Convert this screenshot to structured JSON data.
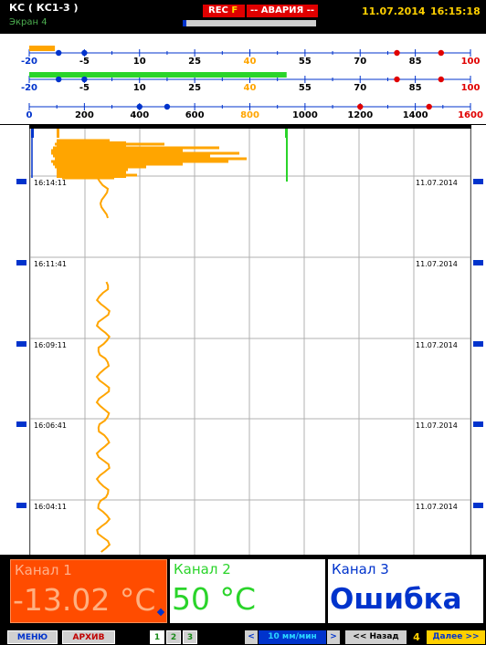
{
  "header": {
    "device_name": "КС ( КС1-3 )",
    "screen_label": "Экран 4",
    "rec_label": "REC",
    "rec_flag": "F",
    "alarm_label": "-- АВАРИЯ --",
    "record_progress": 0.03,
    "date": "11.07.2014",
    "time": "16:15:18"
  },
  "scales": [
    {
      "id": "ch1",
      "color": "#ffa500",
      "min": -20,
      "max": 100,
      "ticks": [
        -20,
        -5,
        10,
        25,
        40,
        55,
        70,
        85,
        100
      ],
      "tick_labels": [
        "-20",
        "-5",
        "10",
        "25",
        "40",
        "55",
        "70",
        "85",
        "100"
      ],
      "bar_value": -13.02,
      "markers_blue": [
        -12,
        -5
      ],
      "markers_red": [
        80,
        92
      ]
    },
    {
      "id": "ch2",
      "color": "#2ad42a",
      "min": -20,
      "max": 100,
      "ticks": [
        -20,
        -5,
        10,
        25,
        40,
        55,
        70,
        85,
        100
      ],
      "tick_labels": [
        "-20",
        "-5",
        "10",
        "25",
        "40",
        "55",
        "70",
        "85",
        "100"
      ],
      "bar_value": 50,
      "markers_blue": [
        -12,
        -5
      ],
      "markers_red": [
        80,
        92
      ]
    },
    {
      "id": "ch3",
      "color": "#0033cc",
      "min": 0,
      "max": 1600,
      "ticks": [
        0,
        200,
        400,
        600,
        800,
        1000,
        1200,
        1400,
        1600
      ],
      "tick_labels": [
        "0",
        "200",
        "400",
        "600",
        "800",
        "1000",
        "1200",
        "1400",
        "1600"
      ],
      "markers_blue": [
        400,
        500
      ],
      "markers_red": [
        1200,
        1450
      ]
    }
  ],
  "chart": {
    "time_labels": [
      "16:14:11",
      "16:11:41",
      "16:09:11",
      "16:06:41",
      "16:04:11"
    ],
    "date_label": "11.07.2014",
    "pointer_ch1": "0",
    "pointer_ch2": "0",
    "pointer_ch3": "0",
    "ch1_value_scale": -13.02
  },
  "channels": [
    {
      "name": "Канал 1",
      "value": "-13.02 °C"
    },
    {
      "name": "Канал 2",
      "value": "50 °C"
    },
    {
      "name": "Канал 3",
      "value": "Ошибка"
    }
  ],
  "bottom": {
    "menu": "МЕНЮ",
    "archive": "АРХИВ",
    "screens": [
      "1",
      "2",
      "3"
    ],
    "speed_prev": "<",
    "speed": "10 мм/мин",
    "speed_next": ">",
    "back": "<< Назад",
    "page": "4",
    "forward": "Далее >>"
  },
  "colors": {
    "ch1": "#ffa500",
    "ch2": "#2ad42a",
    "ch3": "#0033cc",
    "alarm": "#e00000",
    "clock": "#ffd000"
  }
}
